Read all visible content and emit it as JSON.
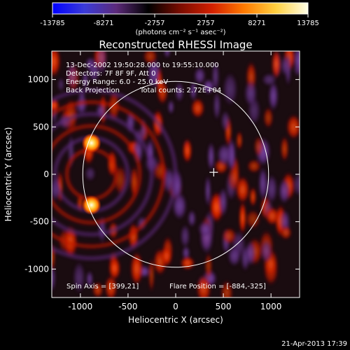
{
  "colorbar": {
    "ticks": [
      "-13785",
      "-8271",
      "-2757",
      "2757",
      "8271",
      "13785"
    ],
    "unit_label": "(photons cm⁻² s⁻¹ asec⁻²)",
    "colors": [
      "#0000ff",
      "#3b3bd8",
      "#5c2a7a",
      "#000000",
      "#7a0c00",
      "#d42000",
      "#ff7a00",
      "#ffd040",
      "#ffffe8"
    ]
  },
  "chart_data": {
    "type": "heatmap",
    "title": "Reconstructed RHESSI Image",
    "xlabel": "Heliocentric X (arcsec)",
    "ylabel": "Heliocentric Y (arcsec)",
    "xlim": [
      -1300,
      1300
    ],
    "ylim": [
      -1300,
      1300
    ],
    "x_ticks": [
      "-1000",
      "-500",
      "0",
      "500",
      "1000"
    ],
    "y_ticks": [
      "1000",
      "500",
      "0",
      "-500",
      "-1000"
    ],
    "annotations": {
      "time_range": "13-Dec-2002 19:50:28.000 to 19:55:10.000",
      "detectors": "Detectors: 7F 8F 9F, Att 0",
      "energy_range": "Energy Range: 6.0 - 25.0 keV",
      "method": "Back Projection",
      "total_counts": "Total counts: 2.72E+04",
      "spin_axis": "Spin Axis = [399,21]",
      "flare_position": "Flare Position = [-884,-325]"
    },
    "solar_limb_radius_arcsec": 975,
    "spin_axis": [
      399,
      21
    ],
    "sources": [
      {
        "x": -884,
        "y": 330,
        "peak": 13785
      },
      {
        "x": -884,
        "y": -325,
        "peak": 13785
      }
    ],
    "color_range": [
      -13785,
      13785
    ]
  },
  "footer": {
    "timestamp": "21-Apr-2013 17:39"
  }
}
